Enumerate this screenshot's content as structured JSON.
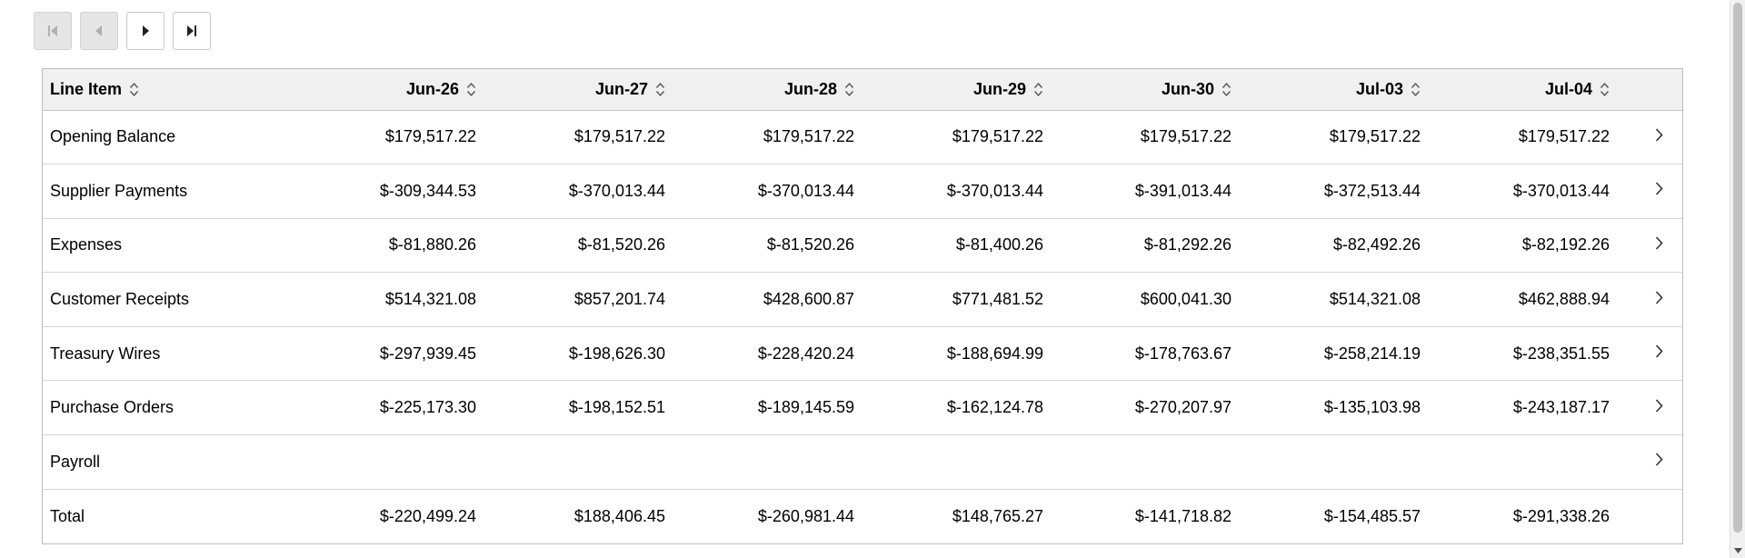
{
  "pager": {
    "buttons": [
      {
        "name": "first-page-button",
        "icon": "first-page-icon",
        "disabled": true
      },
      {
        "name": "prev-page-button",
        "icon": "prev-page-icon",
        "disabled": true
      },
      {
        "name": "next-page-button",
        "icon": "next-page-icon",
        "disabled": false
      },
      {
        "name": "last-page-button",
        "icon": "last-page-icon",
        "disabled": false
      }
    ]
  },
  "table": {
    "columns": [
      "Line Item",
      "Jun-26",
      "Jun-27",
      "Jun-28",
      "Jun-29",
      "Jun-30",
      "Jul-03",
      "Jul-04"
    ],
    "rows": [
      {
        "label": "Opening Balance",
        "values": [
          "$179,517.22",
          "$179,517.22",
          "$179,517.22",
          "$179,517.22",
          "$179,517.22",
          "$179,517.22",
          "$179,517.22"
        ],
        "expandable": true
      },
      {
        "label": "Supplier Payments",
        "values": [
          "$-309,344.53",
          "$-370,013.44",
          "$-370,013.44",
          "$-370,013.44",
          "$-391,013.44",
          "$-372,513.44",
          "$-370,013.44"
        ],
        "expandable": true
      },
      {
        "label": "Expenses",
        "values": [
          "$-81,880.26",
          "$-81,520.26",
          "$-81,520.26",
          "$-81,400.26",
          "$-81,292.26",
          "$-82,492.26",
          "$-82,192.26"
        ],
        "expandable": true
      },
      {
        "label": "Customer Receipts",
        "values": [
          "$514,321.08",
          "$857,201.74",
          "$428,600.87",
          "$771,481.52",
          "$600,041.30",
          "$514,321.08",
          "$462,888.94"
        ],
        "expandable": true
      },
      {
        "label": "Treasury Wires",
        "values": [
          "$-297,939.45",
          "$-198,626.30",
          "$-228,420.24",
          "$-188,694.99",
          "$-178,763.67",
          "$-258,214.19",
          "$-238,351.55"
        ],
        "expandable": true
      },
      {
        "label": "Purchase Orders",
        "values": [
          "$-225,173.30",
          "$-198,152.51",
          "$-189,145.59",
          "$-162,124.78",
          "$-270,207.97",
          "$-135,103.98",
          "$-243,187.17"
        ],
        "expandable": true
      },
      {
        "label": "Payroll",
        "values": [
          "",
          "",
          "",
          "",
          "",
          "",
          ""
        ],
        "expandable": true
      },
      {
        "label": "Total",
        "values": [
          "$-220,499.24",
          "$188,406.45",
          "$-260,981.44",
          "$148,765.27",
          "$-141,718.82",
          "$-154,485.57",
          "$-291,338.26"
        ],
        "expandable": false
      }
    ]
  },
  "icons": {
    "sort": "sort-updown-icon",
    "expand": "chevron-right-icon",
    "scroll_down": "scroll-down-arrow-icon"
  },
  "colors": {
    "header_bg": "#f0f0f0",
    "disabled_button_bg": "#e6e6e6",
    "border": "#bdbdbd"
  }
}
